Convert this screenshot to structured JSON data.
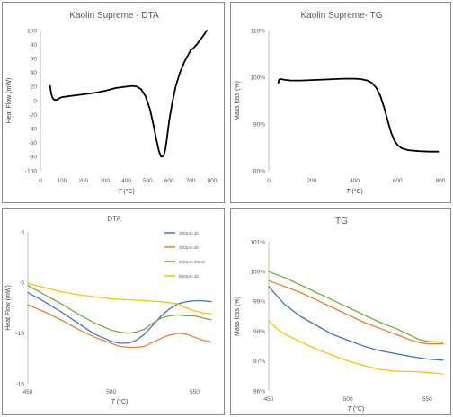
{
  "chart_data": [
    {
      "type": "line",
      "title": "Kaolin Supreme  - DTA",
      "xlabel": "T (°C)",
      "ylabel": "Heat Flow (mW)",
      "xlim": [
        0,
        800
      ],
      "ylim": [
        -100,
        100
      ],
      "x_ticks": [
        "0",
        "100",
        "200",
        "300",
        "400",
        "500",
        "600",
        "700",
        "800"
      ],
      "y_ticks": [
        "100",
        "80",
        "60",
        "40",
        "20",
        "0",
        "-20",
        "-40",
        "-60",
        "-80",
        "-100"
      ],
      "grid": false,
      "series": [
        {
          "color": "#000000",
          "x": [
            45,
            48,
            52,
            58,
            66,
            75,
            85,
            100,
            125,
            150,
            200,
            225,
            250,
            300,
            350,
            400,
            430,
            450,
            470,
            490,
            510,
            525,
            540,
            552,
            562,
            568,
            575,
            583,
            590,
            600,
            615,
            630,
            650,
            670,
            690,
            700,
            710,
            725,
            740,
            760,
            775
          ],
          "y": [
            21,
            14,
            8,
            3,
            1,
            1,
            3,
            5,
            6,
            7,
            9,
            10,
            11,
            14,
            18,
            20,
            21,
            20,
            16,
            6,
            -12,
            -32,
            -55,
            -72,
            -80,
            -80,
            -78,
            -68,
            -52,
            -28,
            -2,
            20,
            40,
            55,
            66,
            72,
            74,
            79,
            85,
            93,
            100
          ]
        }
      ]
    },
    {
      "type": "line",
      "title": "Kaolin Supreme- TG",
      "xlabel": "T (°C)",
      "ylabel": "Mass loss (%)",
      "xlim": [
        0,
        800
      ],
      "ylim": [
        80,
        110
      ],
      "x_ticks": [
        "0",
        "200",
        "400",
        "600",
        "800"
      ],
      "y_ticks": [
        "110%",
        "100%",
        "90%",
        "80%"
      ],
      "grid": false,
      "series": [
        {
          "color": "#000000",
          "x": [
            45,
            48,
            52,
            58,
            70,
            100,
            150,
            200,
            250,
            300,
            350,
            400,
            430,
            460,
            480,
            500,
            520,
            540,
            555,
            570,
            585,
            600,
            620,
            650,
            700,
            750,
            790
          ],
          "y": [
            98.8,
            99.5,
            99.6,
            99.6,
            99.5,
            99.3,
            99.3,
            99.4,
            99.5,
            99.6,
            99.7,
            99.7,
            99.6,
            99.3,
            98.8,
            97.8,
            96.0,
            93.2,
            90.6,
            88.2,
            86.5,
            85.5,
            84.8,
            84.4,
            84.2,
            84.1,
            84.1
          ]
        }
      ]
    },
    {
      "type": "line",
      "title": "DTA",
      "xlabel": "T (°C)",
      "ylabel": "Heat Flow (mW)",
      "xlim": [
        450,
        560
      ],
      "ylim": [
        -15,
        0
      ],
      "x_ticks": [
        "450",
        "500",
        "550"
      ],
      "y_ticks": [
        "0",
        "-5",
        "-10",
        "-15"
      ],
      "grid": false,
      "legend": "top-right",
      "series": [
        {
          "name": "320rpm 1h",
          "color": "#4472c4",
          "x": [
            450,
            460,
            470,
            480,
            490,
            500,
            505,
            510,
            515,
            520,
            525,
            530,
            535,
            540,
            545,
            550,
            555,
            560
          ],
          "y": [
            -6.0,
            -6.9,
            -7.9,
            -9.0,
            -10.1,
            -10.8,
            -11.0,
            -11.0,
            -10.7,
            -10.1,
            -9.2,
            -8.3,
            -7.6,
            -7.1,
            -6.9,
            -6.8,
            -6.8,
            -6.9
          ]
        },
        {
          "name": "320rpm 2h",
          "color": "#ed7d31",
          "x": [
            450,
            460,
            470,
            480,
            490,
            500,
            505,
            510,
            515,
            520,
            525,
            530,
            535,
            540,
            545,
            550,
            555,
            560
          ],
          "y": [
            -7.2,
            -7.9,
            -8.7,
            -9.6,
            -10.4,
            -11.0,
            -11.3,
            -11.4,
            -11.4,
            -11.3,
            -10.9,
            -10.5,
            -10.2,
            -10.0,
            -10.1,
            -10.4,
            -10.7,
            -10.9
          ]
        },
        {
          "name": "650rpm 30min",
          "color": "#70ad47",
          "x": [
            450,
            460,
            470,
            480,
            490,
            500,
            505,
            510,
            515,
            520,
            525,
            530,
            535,
            540,
            545,
            550,
            555,
            560
          ],
          "y": [
            -5.3,
            -6.2,
            -7.1,
            -8.1,
            -9.0,
            -9.7,
            -9.9,
            -10.0,
            -9.9,
            -9.6,
            -9.0,
            -8.5,
            -8.3,
            -8.2,
            -8.3,
            -8.3,
            -8.5,
            -8.7
          ]
        },
        {
          "name": "650rpm 1h",
          "color": "#ffc000",
          "x": [
            450,
            460,
            470,
            480,
            490,
            500,
            510,
            520,
            530,
            540,
            545,
            550,
            555,
            560
          ],
          "y": [
            -5.1,
            -5.5,
            -5.9,
            -6.2,
            -6.4,
            -6.6,
            -6.7,
            -6.8,
            -6.9,
            -7.1,
            -7.5,
            -7.8,
            -8.0,
            -8.1
          ]
        }
      ]
    },
    {
      "type": "line",
      "title": "TG",
      "xlabel": "T (°C)",
      "ylabel": "Mass loss (%)",
      "xlim": [
        450,
        560
      ],
      "ylim": [
        96,
        101
      ],
      "x_ticks": [
        "450",
        "500",
        "550"
      ],
      "y_ticks": [
        "101%",
        "100%",
        "99%",
        "98%",
        "97%",
        "96%"
      ],
      "grid": false,
      "series": [
        {
          "color": "#4472c4",
          "x": [
            450,
            455,
            460,
            470,
            480,
            490,
            500,
            510,
            520,
            530,
            540,
            550,
            560
          ],
          "y": [
            99.5,
            99.2,
            98.9,
            98.5,
            98.2,
            97.9,
            97.7,
            97.5,
            97.35,
            97.25,
            97.15,
            97.07,
            97.03
          ]
        },
        {
          "color": "#ed7d31",
          "x": [
            450,
            460,
            470,
            480,
            490,
            500,
            510,
            520,
            530,
            540,
            545,
            550,
            560
          ],
          "y": [
            99.7,
            99.5,
            99.3,
            99.05,
            98.8,
            98.55,
            98.3,
            98.1,
            97.9,
            97.7,
            97.62,
            97.58,
            97.58
          ]
        },
        {
          "color": "#70ad47",
          "x": [
            450,
            460,
            470,
            480,
            490,
            500,
            510,
            520,
            530,
            540,
            545,
            550,
            560
          ],
          "y": [
            100.0,
            99.8,
            99.55,
            99.3,
            99.05,
            98.8,
            98.55,
            98.3,
            98.1,
            97.85,
            97.72,
            97.66,
            97.63
          ]
        },
        {
          "color": "#ffc000",
          "x": [
            450,
            455,
            460,
            470,
            480,
            490,
            500,
            510,
            520,
            530,
            540,
            550,
            560
          ],
          "y": [
            98.35,
            98.1,
            97.9,
            97.65,
            97.4,
            97.2,
            97.0,
            96.85,
            96.72,
            96.66,
            96.65,
            96.62,
            96.57
          ]
        }
      ]
    }
  ]
}
